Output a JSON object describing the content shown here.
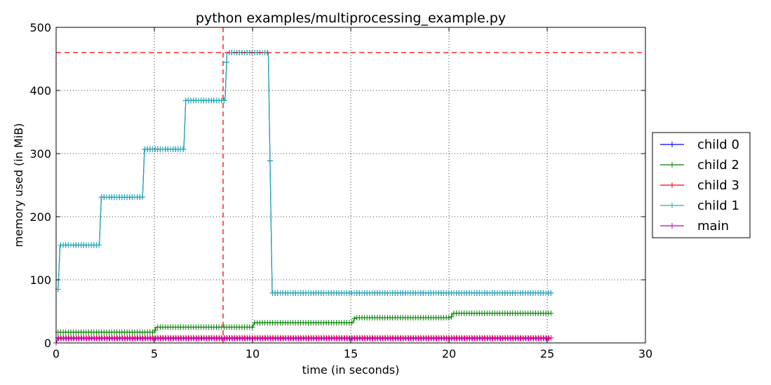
{
  "chart_data": {
    "type": "line",
    "title": "python examples/multiprocessing_example.py",
    "xlabel": "time (in seconds)",
    "ylabel": "memory used (in MiB)",
    "xlim": [
      0,
      30
    ],
    "ylim": [
      0,
      500
    ],
    "xticks": [
      "0",
      "5",
      "10",
      "15",
      "20",
      "25",
      "30"
    ],
    "yticks": [
      "0",
      "100",
      "200",
      "300",
      "400",
      "500"
    ],
    "grid": true,
    "legend_position": "right",
    "reference_lines": [
      {
        "orientation": "vertical",
        "x": 8.5,
        "color": "#ff0000",
        "style": "dashed"
      },
      {
        "orientation": "horizontal",
        "y": 460,
        "color": "#ff0000",
        "style": "dashed"
      }
    ],
    "series": [
      {
        "name": "child 0",
        "color": "#0000ff",
        "marker": "+",
        "x": [
          0.1,
          0.2,
          2.2,
          2.3,
          4.4,
          4.5,
          6.5,
          6.6,
          8.6,
          8.7,
          10.8,
          11.0,
          25.2
        ],
        "y": [
          85,
          155,
          155,
          231,
          231,
          307,
          307,
          384,
          384,
          460,
          460,
          79,
          79
        ]
      },
      {
        "name": "child 2",
        "color": "#008000",
        "marker": "+",
        "x": [
          0.1,
          5.0,
          5.1,
          10.0,
          10.1,
          15.1,
          15.2,
          20.1,
          20.2,
          25.2
        ],
        "y": [
          17,
          17,
          25,
          25,
          32,
          32,
          40,
          40,
          47,
          47
        ]
      },
      {
        "name": "child 3",
        "color": "#ff0000",
        "marker": "+",
        "x": [
          0.1,
          25.2
        ],
        "y": [
          8,
          8
        ]
      },
      {
        "name": "child 1",
        "color": "#20b2aa",
        "marker": "+",
        "x": [
          0.1,
          0.2,
          2.2,
          2.3,
          4.4,
          4.5,
          6.5,
          6.6,
          8.6,
          8.7,
          10.8,
          11.0,
          25.2
        ],
        "y": [
          85,
          155,
          155,
          231,
          231,
          307,
          307,
          384,
          384,
          460,
          460,
          79,
          79
        ]
      },
      {
        "name": "main",
        "color": "#bf00bf",
        "marker": "+",
        "x": [
          0.0,
          0.1,
          25.2
        ],
        "y": [
          0,
          7,
          7
        ]
      }
    ]
  }
}
